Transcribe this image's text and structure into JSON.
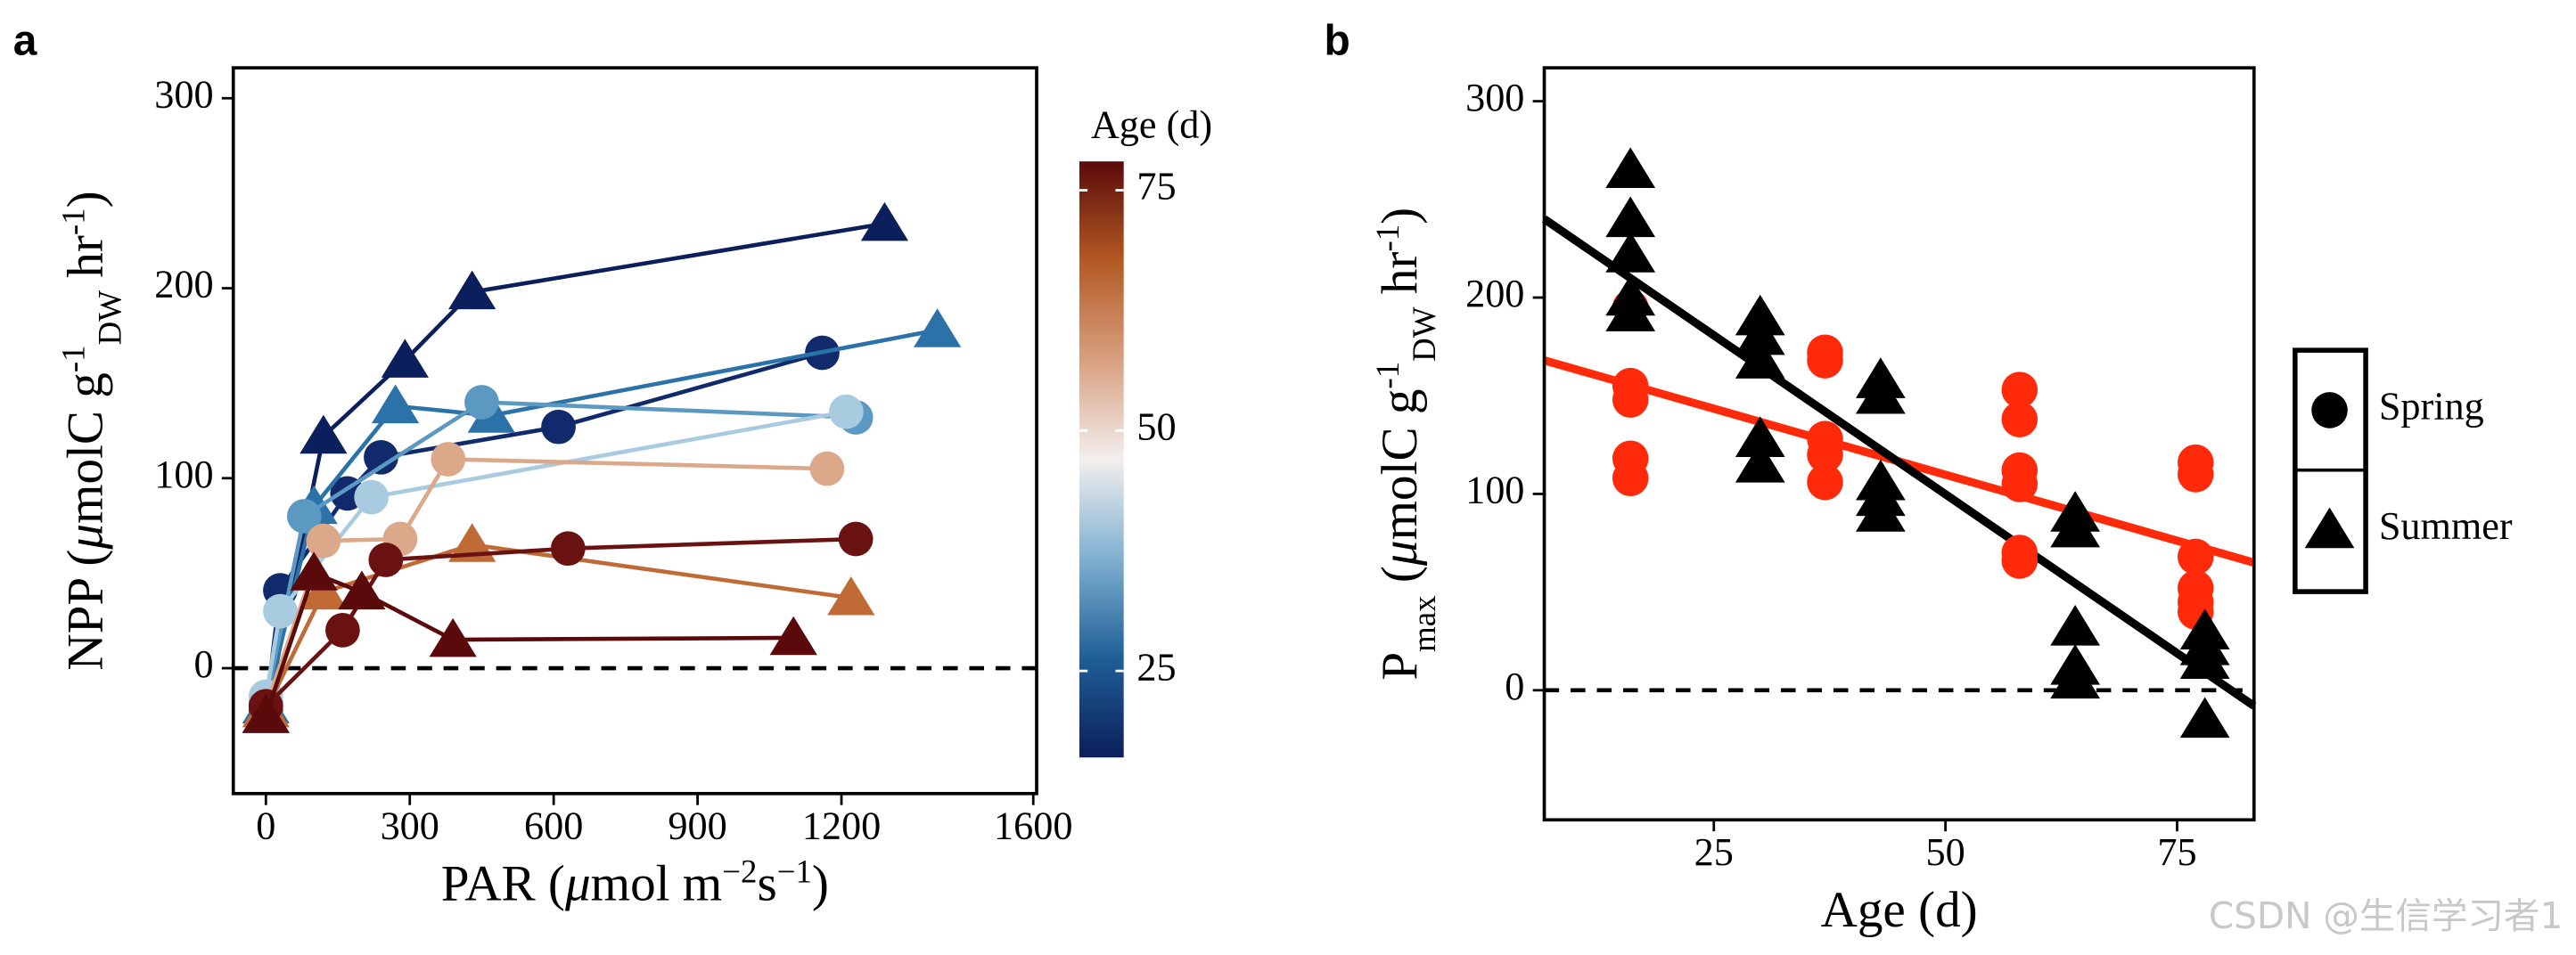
{
  "chart_data": [
    {
      "type": "line",
      "panel_label": "a",
      "xlabel_parts": [
        {
          "text": "PAR (",
          "pos": "base"
        },
        {
          "text": "μ",
          "pos": "italic"
        },
        {
          "text": "mol m",
          "pos": "base"
        },
        {
          "text": "−2",
          "pos": "sup"
        },
        {
          "text": "s",
          "pos": "base"
        },
        {
          "text": "−1",
          "pos": "sup"
        },
        {
          "text": ")",
          "pos": "base"
        }
      ],
      "ylabel_parts": [
        {
          "text": "NPP (",
          "pos": "base"
        },
        {
          "text": "μ",
          "pos": "italic"
        },
        {
          "text": "molC g",
          "pos": "base"
        },
        {
          "text": "-1",
          "pos": "sup"
        },
        {
          "text": "DW",
          "pos": "sub"
        },
        {
          "text": " hr",
          "pos": "base"
        },
        {
          "text": "-1",
          "pos": "sup"
        },
        {
          "text": ")",
          "pos": "base"
        }
      ],
      "xlim": [
        -68,
        1607
      ],
      "ylim": [
        -66,
        316
      ],
      "xticks": [
        0,
        300,
        600,
        900,
        1200,
        1600
      ],
      "yticks": [
        0,
        100,
        200,
        300
      ],
      "reference_line": 0,
      "series": [
        {
          "color": "#0b1f5c",
          "marker": "triangle",
          "x": [
            0,
            120,
            290,
            430,
            1290
          ],
          "values": [
            -25,
            122,
            162,
            198,
            234
          ]
        },
        {
          "color": "#102a6b",
          "marker": "circle",
          "x": [
            0,
            30,
            170,
            240,
            610,
            1160
          ],
          "values": [
            -22,
            41,
            92,
            111,
            127,
            166
          ]
        },
        {
          "color": "#2a72a8",
          "marker": "triangle",
          "x": [
            0,
            100,
            270,
            470,
            1400
          ],
          "values": [
            -20,
            85,
            138,
            133,
            178
          ]
        },
        {
          "color": "#5b98c2",
          "marker": "circle",
          "x": [
            0,
            80,
            450,
            1230
          ],
          "values": [
            -18,
            80,
            140,
            132
          ]
        },
        {
          "color": "#a9cbe0",
          "marker": "circle",
          "x": [
            0,
            30,
            220,
            1210
          ],
          "values": [
            -15,
            30,
            90,
            135
          ]
        },
        {
          "color": "#dca88a",
          "marker": "circle",
          "x": [
            0,
            120,
            280,
            380,
            1170
          ],
          "values": [
            -20,
            67,
            68,
            110,
            105
          ]
        },
        {
          "color": "#c06a36",
          "marker": "triangle",
          "x": [
            0,
            120,
            430,
            1220
          ],
          "values": [
            -22,
            40,
            65,
            37
          ]
        },
        {
          "color": "#6a1212",
          "marker": "circle",
          "x": [
            0,
            160,
            250,
            630,
            1230
          ],
          "values": [
            -20,
            20,
            57,
            63,
            68
          ]
        },
        {
          "color": "#5a0a0a",
          "marker": "triangle",
          "x": [
            0,
            100,
            200,
            390,
            1100
          ],
          "values": [
            -25,
            50,
            40,
            15,
            16
          ]
        }
      ],
      "colorbar": {
        "title": "Age (d)",
        "lim": [
          16,
          78
        ],
        "ticks": [
          25,
          50,
          75
        ],
        "colors": [
          "#0b1f5c",
          "#1f5f96",
          "#7fb0d0",
          "#f2efee",
          "#d8a080",
          "#b35a24",
          "#5a0a0a"
        ]
      }
    },
    {
      "type": "scatter",
      "panel_label": "b",
      "xlabel_parts": [
        {
          "text": "Age (d)",
          "pos": "base"
        }
      ],
      "ylabel_parts": [
        {
          "text": "P",
          "pos": "base"
        },
        {
          "text": "max",
          "pos": "sub"
        },
        {
          "text": " (",
          "pos": "base"
        },
        {
          "text": "μ",
          "pos": "italic"
        },
        {
          "text": "molC g",
          "pos": "base"
        },
        {
          "text": "-1",
          "pos": "sup"
        },
        {
          "text": "DW",
          "pos": "sub"
        },
        {
          "text": " hr",
          "pos": "base"
        },
        {
          "text": "-1",
          "pos": "sup"
        },
        {
          "text": ")",
          "pos": "base"
        }
      ],
      "xlim": [
        6.7,
        83.3
      ],
      "ylim": [
        -66,
        317
      ],
      "xticks": [
        25,
        50,
        75
      ],
      "yticks": [
        0,
        100,
        200,
        300
      ],
      "reference_line": 0,
      "series": [
        {
          "name": "Spring",
          "color": "#ff2a0a",
          "marker": "circle",
          "x": [
            16,
            16,
            16,
            16,
            16,
            37,
            37,
            37,
            37,
            37,
            58,
            58,
            58,
            58,
            58,
            58,
            77,
            77,
            77,
            77,
            77,
            77
          ],
          "values": [
            195,
            155,
            148,
            118,
            108,
            172,
            168,
            128,
            120,
            106,
            153,
            138,
            112,
            105,
            70,
            66,
            116,
            110,
            68,
            52,
            45,
            40
          ]
        },
        {
          "name": "Summer",
          "color": "#000000",
          "marker": "triangle",
          "x": [
            16,
            16,
            16,
            16,
            16,
            30,
            30,
            30,
            30,
            30,
            43,
            43,
            43,
            43,
            43,
            64,
            64,
            64,
            64,
            64,
            78,
            78,
            78,
            78
          ],
          "values": [
            265,
            240,
            222,
            200,
            192,
            190,
            180,
            168,
            128,
            115,
            158,
            150,
            106,
            98,
            90,
            90,
            82,
            32,
            12,
            5,
            30,
            22,
            15,
            -15
          ]
        }
      ],
      "fit_lines": [
        {
          "color": "#ff2a0a",
          "x": [
            6.7,
            83.3
          ],
          "values": [
            168,
            65
          ]
        },
        {
          "color": "#000000",
          "x": [
            6.7,
            83.3
          ],
          "values": [
            240,
            -8
          ]
        }
      ],
      "legend": "right"
    }
  ],
  "watermark": "CSDN @生信学习者1"
}
